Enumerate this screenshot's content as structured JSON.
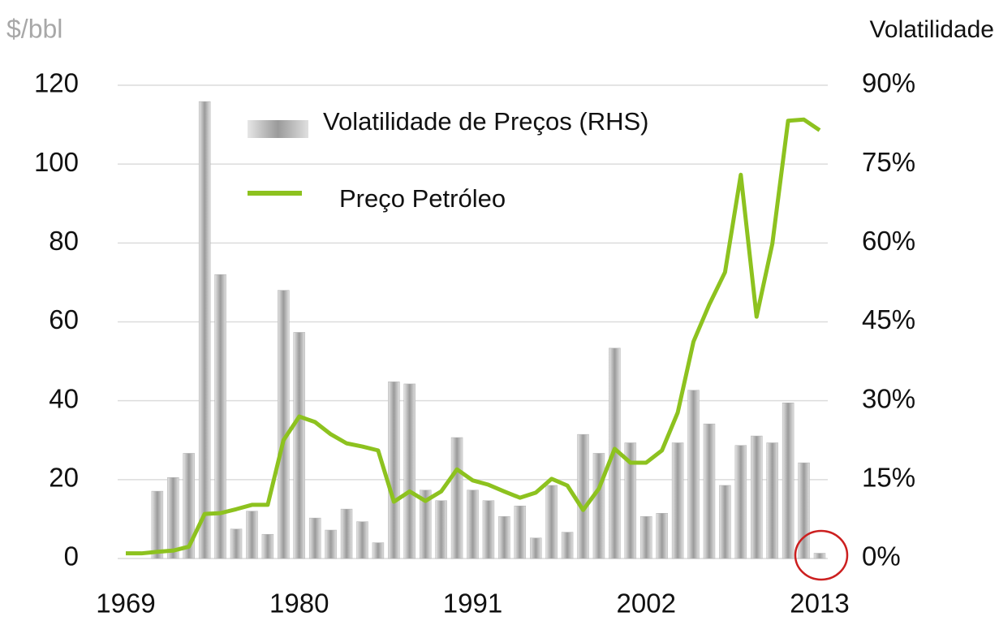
{
  "chart_data": {
    "type": "bar_line",
    "y_label": "$/bbl",
    "y2_label": "Volatilidade",
    "x": [
      1969,
      1970,
      1971,
      1972,
      1973,
      1974,
      1975,
      1976,
      1977,
      1978,
      1979,
      1980,
      1981,
      1982,
      1983,
      1984,
      1985,
      1986,
      1987,
      1988,
      1989,
      1990,
      1991,
      1992,
      1993,
      1994,
      1995,
      1996,
      1997,
      1998,
      1999,
      2000,
      2001,
      2002,
      2003,
      2004,
      2005,
      2006,
      2007,
      2008,
      2009,
      2010,
      2011,
      2012,
      2013
    ],
    "xlim": [
      1969,
      2013
    ],
    "xticks": [
      1969,
      1980,
      1991,
      2002,
      2013
    ],
    "ylim": [
      0,
      120
    ],
    "yticks": [
      0,
      20,
      40,
      60,
      80,
      100,
      120
    ],
    "y2lim": [
      0,
      90
    ],
    "y2ticks": [
      {
        "value": 0,
        "label": "0%"
      },
      {
        "value": 15,
        "label": "15%"
      },
      {
        "value": 30,
        "label": "30%"
      },
      {
        "value": 45,
        "label": "45%"
      },
      {
        "value": 60,
        "label": "60%"
      },
      {
        "value": 75,
        "label": "75%"
      },
      {
        "value": 90,
        "label": "90%"
      }
    ],
    "grid": true,
    "series": [
      {
        "name": "Volatilidade de Preços (RHS)",
        "kind": "bar",
        "axis": "y2",
        "color": "#bdbdbd",
        "values": [
          null,
          null,
          12.8,
          15.4,
          20,
          86.9,
          54,
          5.6,
          9,
          4.6,
          51,
          43,
          7.7,
          5.4,
          9.4,
          7,
          3,
          33.6,
          33.2,
          13,
          11,
          23,
          13,
          11,
          8,
          10,
          3.9,
          13.9,
          5,
          23.6,
          20,
          40,
          22,
          8,
          8.6,
          22,
          32,
          25.6,
          13.9,
          21.5,
          23.3,
          22,
          29.6,
          18.2,
          1
        ]
      },
      {
        "name": "Preço Petróleo",
        "kind": "line",
        "axis": "y",
        "color": "#8dc21f",
        "values": [
          1.3,
          1.3,
          1.7,
          2,
          3,
          11.3,
          11.5,
          12.5,
          13.6,
          13.6,
          30,
          36,
          34.6,
          31.5,
          29.2,
          28.4,
          27.4,
          14.4,
          17,
          14.6,
          17,
          22.6,
          19.8,
          18.7,
          17,
          15.4,
          16.7,
          20.2,
          18.5,
          12.3,
          17.7,
          27.8,
          24.3,
          24.3,
          27.4,
          37,
          55,
          64.4,
          72.6,
          97.3,
          61.3,
          79.8,
          111,
          111.3,
          108.6
        ]
      }
    ]
  }
}
